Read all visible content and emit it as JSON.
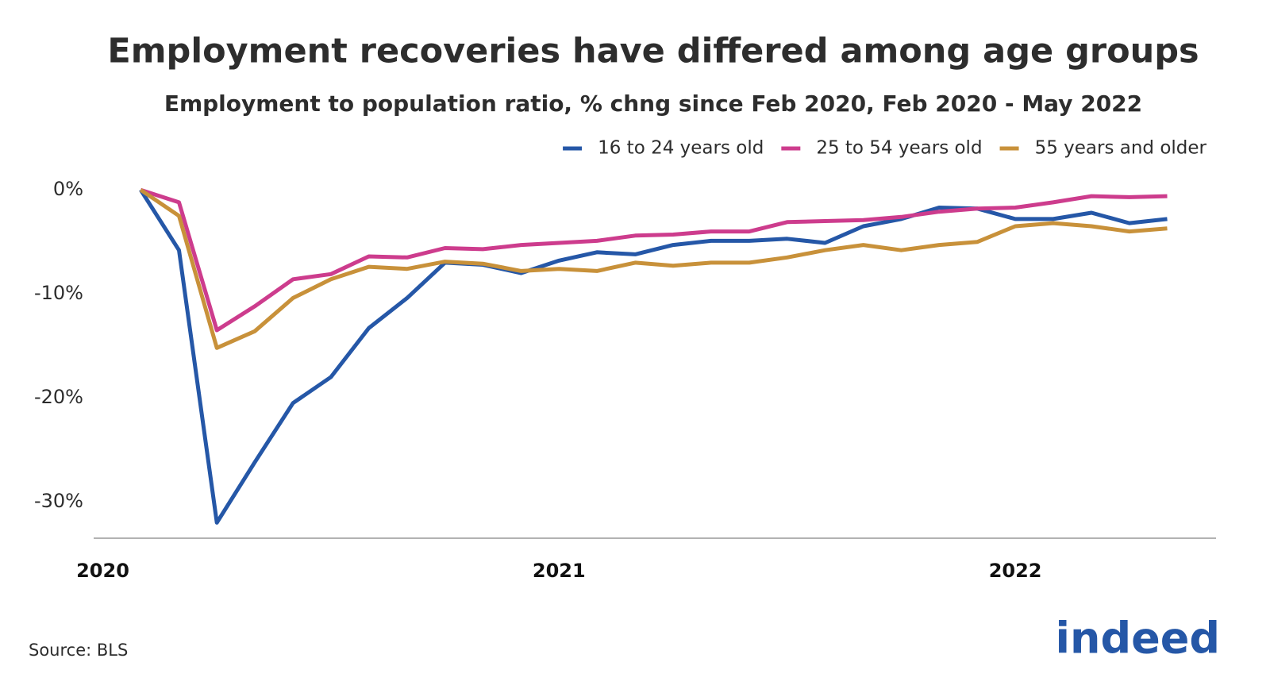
{
  "chart_data": {
    "type": "line",
    "title": "Employment recoveries have differed among age groups",
    "subtitle": "Employment to population ratio, % chng since Feb 2020, Feb 2020 - May 2022",
    "source": "Source: BLS",
    "logo": "indeed",
    "x": [
      2020.083,
      2020.167,
      2020.25,
      2020.333,
      2020.417,
      2020.5,
      2020.583,
      2020.667,
      2020.75,
      2020.833,
      2020.917,
      2021.0,
      2021.083,
      2021.167,
      2021.25,
      2021.333,
      2021.417,
      2021.5,
      2021.583,
      2021.667,
      2021.75,
      2021.833,
      2021.917,
      2022.0,
      2022.083,
      2022.167,
      2022.25,
      2022.333
    ],
    "series": [
      {
        "name": "16 to 24 years old",
        "color": "#2557a7",
        "values": [
          0,
          -5.8,
          -32,
          -26.2,
          -20.5,
          -18,
          -13.3,
          -10.4,
          -7,
          -7.2,
          -8,
          -6.8,
          -6,
          -6.2,
          -5.3,
          -4.9,
          -4.9,
          -4.7,
          -5.1,
          -3.5,
          -2.8,
          -1.7,
          -1.8,
          -2.8,
          -2.8,
          -2.2,
          -3.2,
          -2.8
        ]
      },
      {
        "name": "25 to 54 years old",
        "color": "#cd3c8d",
        "values": [
          0,
          -1.2,
          -13.5,
          -11.2,
          -8.6,
          -8.1,
          -6.4,
          -6.5,
          -5.6,
          -5.7,
          -5.3,
          -5.1,
          -4.9,
          -4.4,
          -4.3,
          -4,
          -4,
          -3.1,
          -3,
          -2.9,
          -2.6,
          -2.1,
          -1.8,
          -1.7,
          -1.2,
          -0.6,
          -0.7,
          -0.6
        ]
      },
      {
        "name": "55 years and older",
        "color": "#c8913a",
        "values": [
          0,
          -2.5,
          -15.2,
          -13.6,
          -10.4,
          -8.6,
          -7.4,
          -7.6,
          -6.9,
          -7.1,
          -7.8,
          -7.6,
          -7.8,
          -7,
          -7.3,
          -7,
          -7,
          -6.5,
          -5.8,
          -5.3,
          -5.8,
          -5.3,
          -5,
          -3.5,
          -3.2,
          -3.5,
          -4,
          -3.7
        ]
      }
    ],
    "xlim": [
      2019.98,
      2022.44
    ],
    "xticks": [
      2020,
      2021,
      2022
    ],
    "ylim": [
      -33.5,
      2
    ],
    "yticks": [
      {
        "value": 0,
        "label": "0%"
      },
      {
        "value": -10,
        "label": "-10%"
      },
      {
        "value": -20,
        "label": "-20%"
      },
      {
        "value": -30,
        "label": "-30%"
      }
    ],
    "grid": false,
    "legend": "top-right"
  }
}
